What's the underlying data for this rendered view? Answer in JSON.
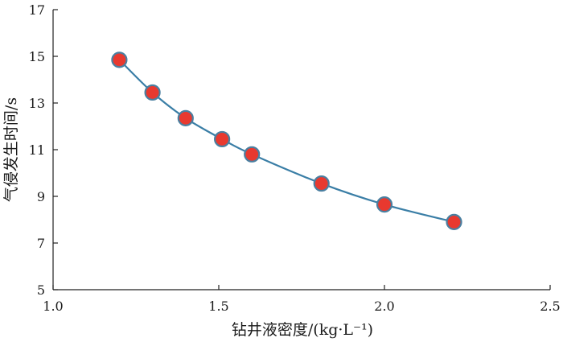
{
  "chart_data": {
    "type": "line",
    "xlabel": "钻井液密度/(kg·L⁻¹)",
    "ylabel": "气侵发生时间/s",
    "xlim": [
      1.0,
      2.5
    ],
    "ylim": [
      5,
      17
    ],
    "x_ticks": [
      "1.0",
      "1.5",
      "2.0",
      "2.5"
    ],
    "y_ticks": [
      "5",
      "7",
      "9",
      "11",
      "13",
      "15",
      "17"
    ],
    "grid": false,
    "series": [
      {
        "x": [
          1.2,
          1.3,
          1.4,
          1.51,
          1.6,
          1.81,
          2.0,
          2.21
        ],
        "y": [
          14.85,
          13.45,
          12.35,
          11.45,
          10.8,
          9.55,
          8.65,
          7.9
        ],
        "line_color": "#3a7ea6",
        "marker_color": "#e8392f",
        "marker_edge_color": "#4a7fa0"
      }
    ]
  }
}
